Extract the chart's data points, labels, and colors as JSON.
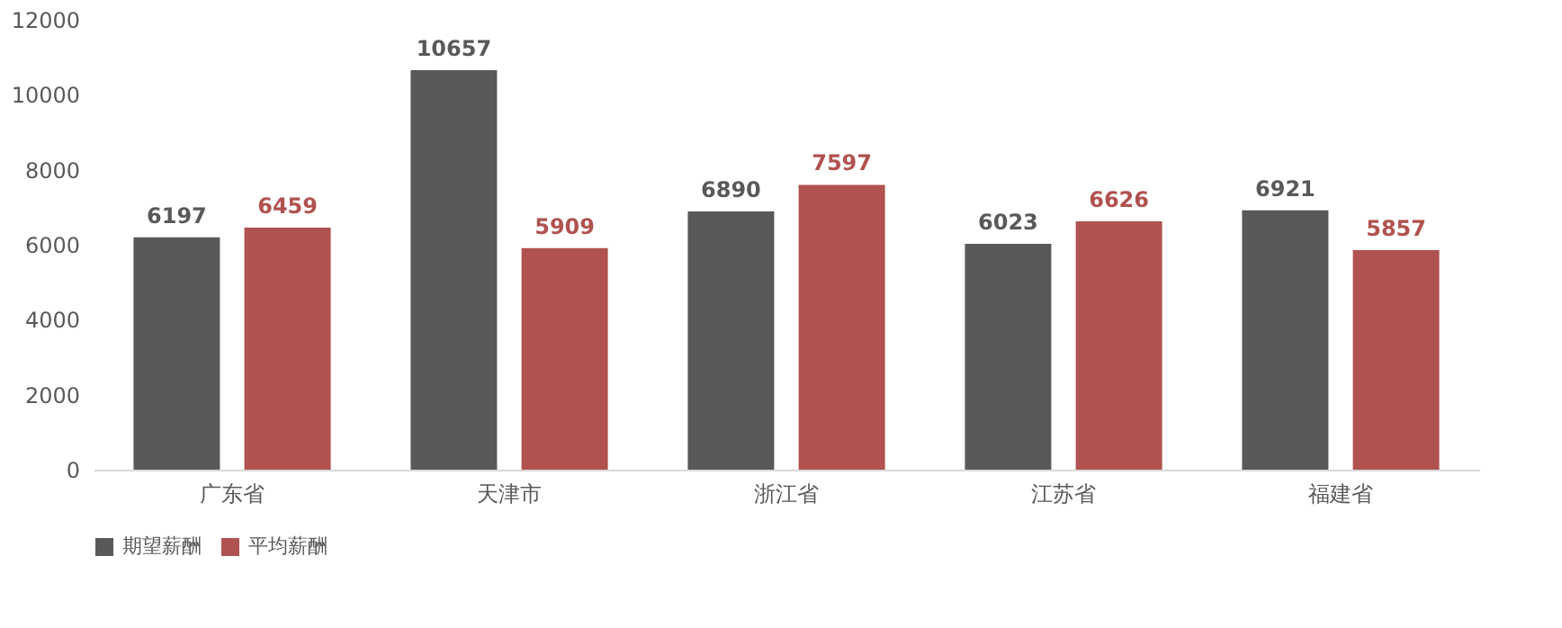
{
  "chart_data": {
    "type": "bar",
    "categories": [
      "广东省",
      "天津市",
      "浙江省",
      "江苏省",
      "福建省"
    ],
    "series": [
      {
        "name": "期望薪酬",
        "color": "#595959",
        "values": [
          6197,
          10657,
          6890,
          6023,
          6921
        ]
      },
      {
        "name": "平均薪酬",
        "color": "#b0524f",
        "values": [
          6459,
          5909,
          7597,
          6626,
          5857
        ]
      }
    ],
    "ylim": [
      0,
      12000
    ],
    "yticks": [
      0,
      2000,
      4000,
      6000,
      8000,
      10000,
      12000
    ],
    "grid": false,
    "legend": "bottom",
    "data_labels": true
  }
}
